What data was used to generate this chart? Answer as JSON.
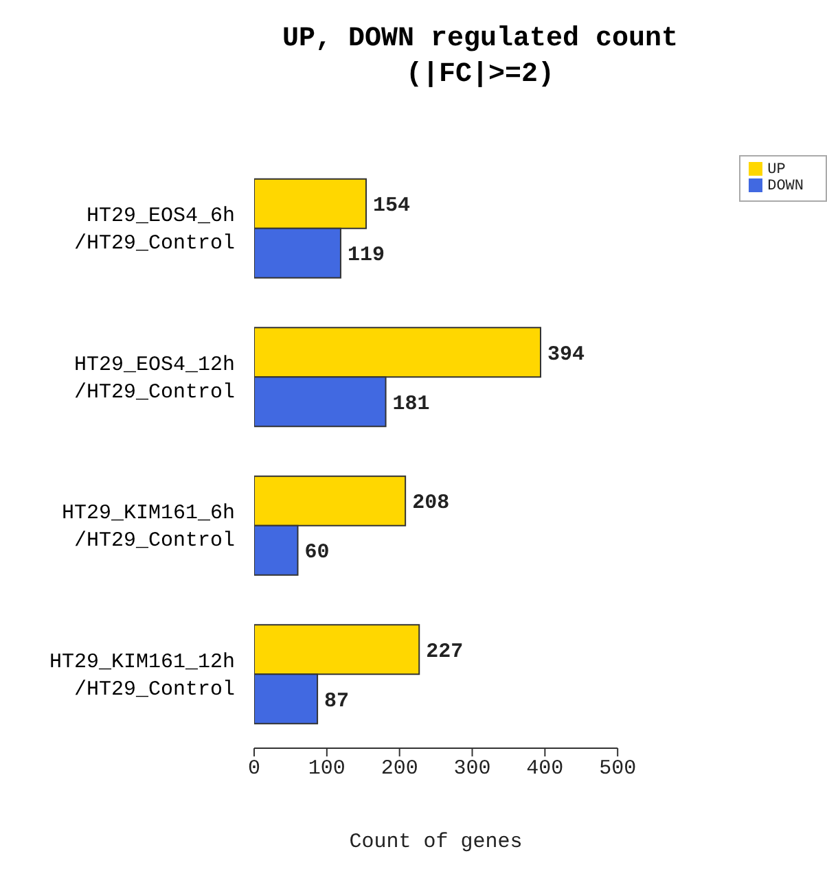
{
  "chart_data": {
    "type": "bar",
    "orientation": "horizontal",
    "title": "UP, DOWN regulated count\n(|FC|>=2)",
    "xlabel": "Count of genes",
    "categories": [
      "HT29_EOS4_6h\n/HT29_Control",
      "HT29_EOS4_12h\n/HT29_Control",
      "HT29_KIM161_6h\n/HT29_Control",
      "HT29_KIM161_12h\n/HT29_Control"
    ],
    "series": [
      {
        "name": "UP",
        "color": "#ffd700",
        "values": [
          154,
          394,
          208,
          227
        ]
      },
      {
        "name": "DOWN",
        "color": "#4169e1",
        "values": [
          119,
          181,
          60,
          87
        ]
      }
    ],
    "xlim": [
      0,
      500
    ],
    "xticks": [
      0,
      100,
      200,
      300,
      400,
      500
    ],
    "data_labels": true,
    "legend": "top right",
    "grid": false
  }
}
